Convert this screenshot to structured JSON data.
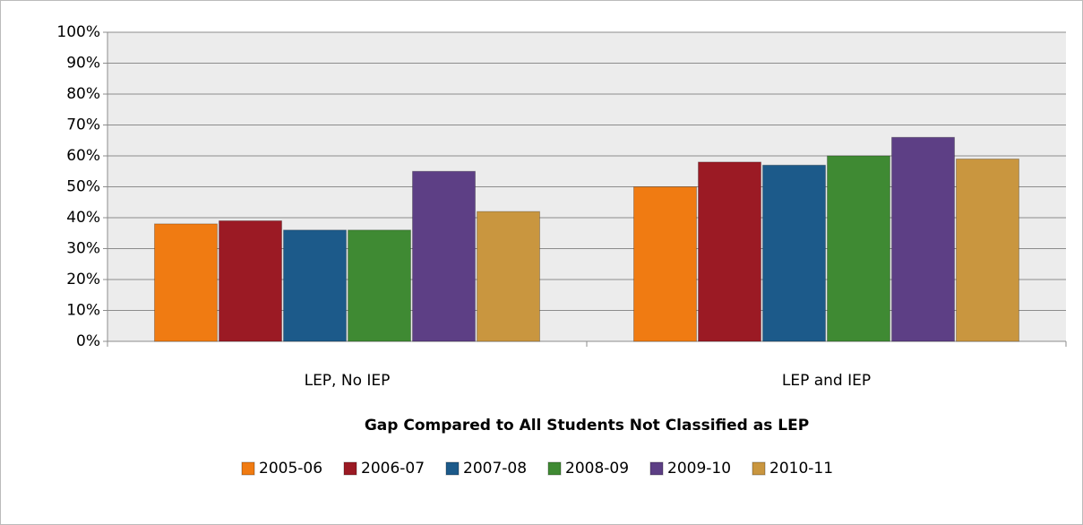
{
  "chart_data": {
    "type": "bar",
    "x_label": "Gap Compared to All Students Not Classified as LEP",
    "categories": [
      "LEP, No IEP",
      "LEP and IEP"
    ],
    "series": [
      {
        "name": "2005-06",
        "color": "#f07b12",
        "values": [
          38,
          50
        ]
      },
      {
        "name": "2006-07",
        "color": "#9b1a24",
        "values": [
          39,
          58
        ]
      },
      {
        "name": "2007-08",
        "color": "#1c5a8a",
        "values": [
          36,
          57
        ]
      },
      {
        "name": "2008-09",
        "color": "#3f8a33",
        "values": [
          36,
          60
        ]
      },
      {
        "name": "2009-10",
        "color": "#5d3f85",
        "values": [
          55,
          66
        ]
      },
      {
        "name": "2010-11",
        "color": "#c9963f",
        "values": [
          42,
          59
        ]
      }
    ],
    "ylim": [
      0,
      100
    ],
    "yticks": [
      {
        "value": 0,
        "label": "0%"
      },
      {
        "value": 10,
        "label": "10%"
      },
      {
        "value": 20,
        "label": "20%"
      },
      {
        "value": 30,
        "label": "30%"
      },
      {
        "value": 40,
        "label": "40%"
      },
      {
        "value": 50,
        "label": "50%"
      },
      {
        "value": 60,
        "label": "60%"
      },
      {
        "value": 70,
        "label": "70%"
      },
      {
        "value": 80,
        "label": "80%"
      },
      {
        "value": 90,
        "label": "90%"
      },
      {
        "value": 100,
        "label": "100%"
      }
    ],
    "grid": true,
    "legend": "bottom"
  }
}
